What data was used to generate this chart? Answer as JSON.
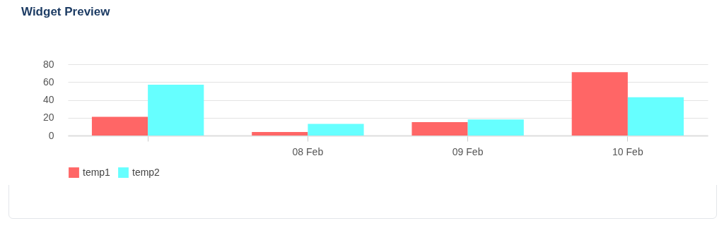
{
  "chart_data": {
    "type": "bar",
    "title": "Widget Preview",
    "categories": [
      null,
      "08 Feb",
      "09 Feb",
      "10 Feb"
    ],
    "series": [
      {
        "name": "temp1",
        "color": "#ff6666",
        "values": [
          21,
          4,
          15,
          71
        ]
      },
      {
        "name": "temp2",
        "color": "#66ffff",
        "values": [
          57,
          13,
          18,
          43
        ]
      }
    ],
    "ylim": [
      0,
      80
    ],
    "yticks": [
      0,
      20,
      40,
      60,
      80
    ],
    "grid": "y",
    "legend": "bottom"
  }
}
